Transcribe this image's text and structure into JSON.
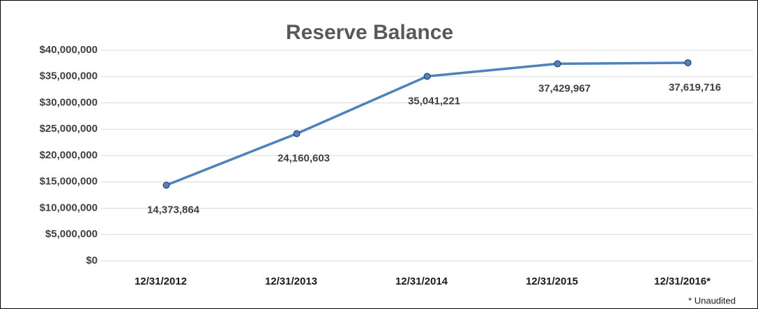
{
  "chart_data": {
    "type": "line",
    "title": "Reserve Balance",
    "categories": [
      "12/31/2012",
      "12/31/2013",
      "12/31/2014",
      "12/31/2015",
      "12/31/2016*"
    ],
    "series": [
      {
        "name": "Reserve Balance",
        "color": "#4f81bd",
        "values": [
          14373864,
          24160603,
          35041221,
          37429967,
          37619716
        ],
        "value_labels": [
          "14,373,864",
          "24,160,603",
          "35,041,221",
          "37,429,967",
          "37,619,716"
        ]
      }
    ],
    "ylim": [
      0,
      40000000
    ],
    "yticks": [
      {
        "value": 0,
        "label": "$0"
      },
      {
        "value": 5000000,
        "label": "$5,000,000"
      },
      {
        "value": 10000000,
        "label": "$10,000,000"
      },
      {
        "value": 15000000,
        "label": "$15,000,000"
      },
      {
        "value": 20000000,
        "label": "$20,000,000"
      },
      {
        "value": 25000000,
        "label": "$25,000,000"
      },
      {
        "value": 30000000,
        "label": "$30,000,000"
      },
      {
        "value": 35000000,
        "label": "$35,000,000"
      },
      {
        "value": 40000000,
        "label": "$40,000,000"
      }
    ],
    "grid": true,
    "note": "* Unaudited"
  }
}
